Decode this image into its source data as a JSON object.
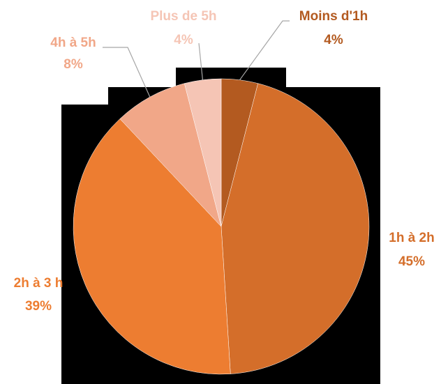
{
  "chart_data": {
    "type": "pie",
    "categories": [
      "Moins d'1h",
      "1h à 2h",
      "2h à 3 h",
      "4h à 5h",
      "Plus de 5h"
    ],
    "values": [
      4,
      45,
      39,
      8,
      4
    ],
    "value_labels": [
      "4%",
      "45%",
      "39%",
      "8%",
      "4%"
    ],
    "colors": [
      "#b35a20",
      "#d46e2a",
      "#ed7d31",
      "#f1a788",
      "#f5c5b5"
    ]
  }
}
